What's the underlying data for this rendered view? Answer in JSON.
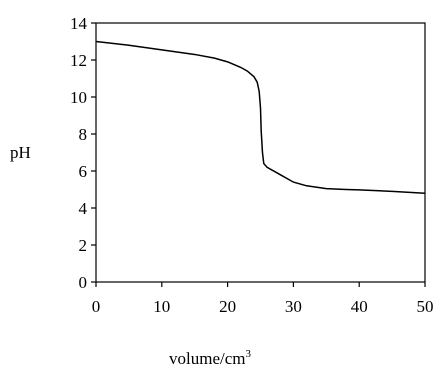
{
  "chart_data": {
    "type": "line",
    "title": "",
    "xlabel": "volume/cm",
    "xlabel_superscript": "3",
    "ylabel": "pH",
    "xlim": [
      0,
      50
    ],
    "ylim": [
      0,
      14
    ],
    "xticks": [
      "0",
      "10",
      "20",
      "30",
      "40",
      "50"
    ],
    "yticks": [
      "0",
      "2",
      "4",
      "6",
      "8",
      "10",
      "12",
      "14"
    ],
    "grid": false,
    "legend": "none",
    "series": [
      {
        "x": [
          0,
          5,
          10,
          15,
          18,
          20,
          22,
          23,
          24,
          24.5,
          24.8,
          25.0,
          25.1,
          25.3,
          25.5,
          26,
          28,
          30,
          32,
          35,
          38,
          40,
          45,
          50
        ],
        "y": [
          13.0,
          12.8,
          12.55,
          12.3,
          12.1,
          11.9,
          11.6,
          11.4,
          11.1,
          10.8,
          10.3,
          9.4,
          8.2,
          7.0,
          6.4,
          6.2,
          5.8,
          5.4,
          5.2,
          5.05,
          5.0,
          4.98,
          4.9,
          4.8
        ]
      }
    ],
    "colors": {
      "line": "#000000",
      "axes": "#000000"
    }
  }
}
